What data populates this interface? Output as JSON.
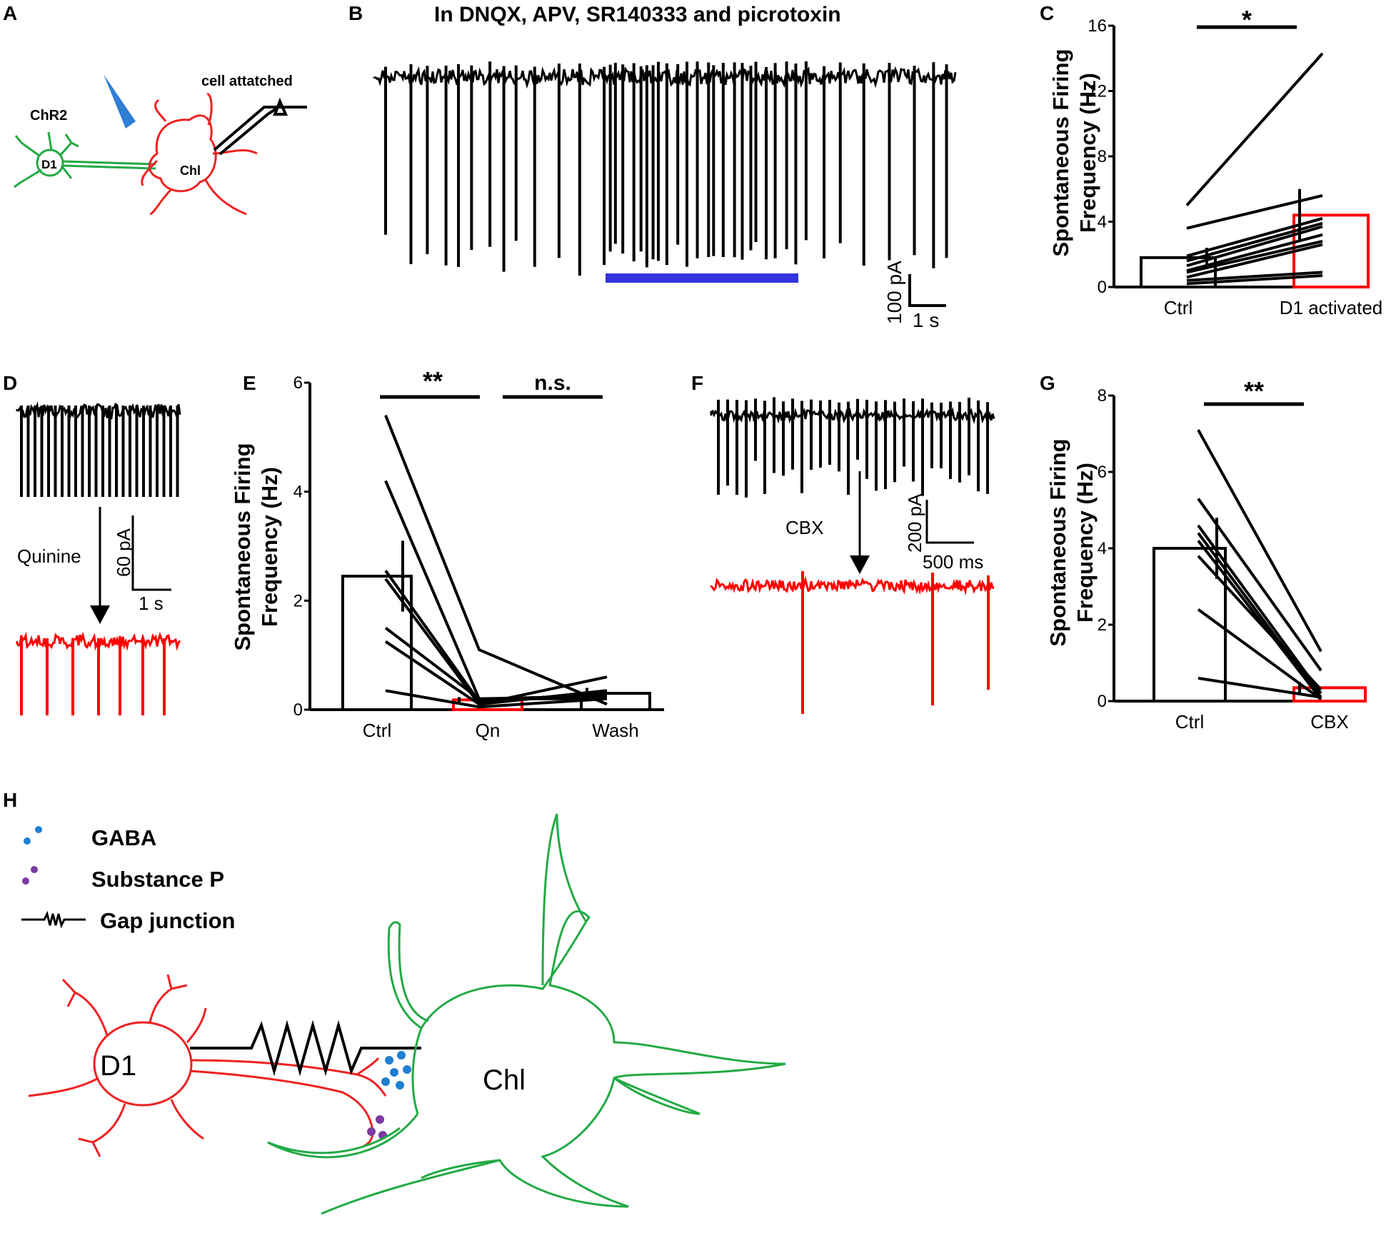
{
  "panels": {
    "A": {
      "letter": "A",
      "chr2": "ChR2",
      "d1": "D1",
      "chi": "Chl",
      "cell_attached": "cell attatched"
    },
    "B": {
      "letter": "B",
      "title": "In DNQX, APV, SR140333 and picrotoxin",
      "scale_y": "100 pA",
      "scale_x": "1 s"
    },
    "C": {
      "letter": "C",
      "sig": "*"
    },
    "D": {
      "letter": "D",
      "drug": "Quinine",
      "scale_y": "60 pA",
      "scale_x": "1 s"
    },
    "E": {
      "letter": "E",
      "sig1": "**",
      "sig2": "n.s."
    },
    "F": {
      "letter": "F",
      "drug": "CBX",
      "scale_y": "200 pA",
      "scale_x": "500 ms"
    },
    "G": {
      "letter": "G",
      "sig": "**"
    },
    "H": {
      "letter": "H",
      "gaba": "GABA",
      "substance_p": "Substance P",
      "gap_junction": "Gap junction",
      "d1": "D1",
      "chi": "Chl"
    }
  },
  "colors": {
    "ctrl": "#000000",
    "treated": "#ff0000",
    "light": "#3333dd",
    "chr2_cell": "#22aa44",
    "chi_cell": "#22aa44",
    "d1_cell": "#ee2222",
    "gaba_dot": "#1f7fd0",
    "subp_dot": "#7b3aa0"
  },
  "chart_data": [
    {
      "id": "C",
      "type": "bar",
      "ylabel": "Spontaneous Firing Frequency (Hz)",
      "categories": [
        "Ctrl",
        "D1 activated"
      ],
      "ylim": [
        0,
        16
      ],
      "yticks": [
        0,
        4,
        8,
        12,
        16
      ],
      "series": [
        {
          "values": [
            1.8,
            4.4
          ],
          "errors": [
            0.6,
            1.6
          ]
        }
      ],
      "paired_lines": [
        [
          5.0,
          14.3
        ],
        [
          3.6,
          5.6
        ],
        [
          1.9,
          4.2
        ],
        [
          1.6,
          3.9
        ],
        [
          1.3,
          3.7
        ],
        [
          1.0,
          3.2
        ],
        [
          0.9,
          2.8
        ],
        [
          0.6,
          2.6
        ],
        [
          0.4,
          0.9
        ],
        [
          0.2,
          0.7
        ]
      ]
    },
    {
      "id": "E",
      "type": "bar",
      "ylabel": "Spontaneous Firing Frequency (Hz)",
      "categories": [
        "Ctrl",
        "Qn",
        "Wash"
      ],
      "ylim": [
        0,
        6
      ],
      "yticks": [
        0,
        2,
        4,
        6
      ],
      "series": [
        {
          "values": [
            2.45,
            0.18,
            0.3
          ],
          "errors": [
            0.65,
            0.05,
            0.1
          ]
        }
      ],
      "paired_lines": [
        [
          5.4,
          1.1,
          0.1
        ],
        [
          4.2,
          0.2,
          0.2
        ],
        [
          2.55,
          0.15,
          0.3
        ],
        [
          2.4,
          0.1,
          0.35
        ],
        [
          1.5,
          0.2,
          0.25
        ],
        [
          1.25,
          0.1,
          0.6
        ],
        [
          0.35,
          0.05,
          0.2
        ]
      ]
    },
    {
      "id": "G",
      "type": "bar",
      "ylabel": "Spontaneous Firing Frequency (Hz)",
      "categories": [
        "Ctrl",
        "CBX"
      ],
      "ylim": [
        0,
        8
      ],
      "yticks": [
        0,
        2,
        4,
        6,
        8
      ],
      "series": [
        {
          "values": [
            4.0,
            0.35
          ],
          "errors": [
            0.8,
            0.15
          ]
        }
      ],
      "paired_lines": [
        [
          7.1,
          1.3
        ],
        [
          5.3,
          0.8
        ],
        [
          4.6,
          0.2
        ],
        [
          4.4,
          0.1
        ],
        [
          4.2,
          0.05
        ],
        [
          3.8,
          0.3
        ],
        [
          2.4,
          0.05
        ],
        [
          0.6,
          0.1
        ]
      ]
    }
  ]
}
